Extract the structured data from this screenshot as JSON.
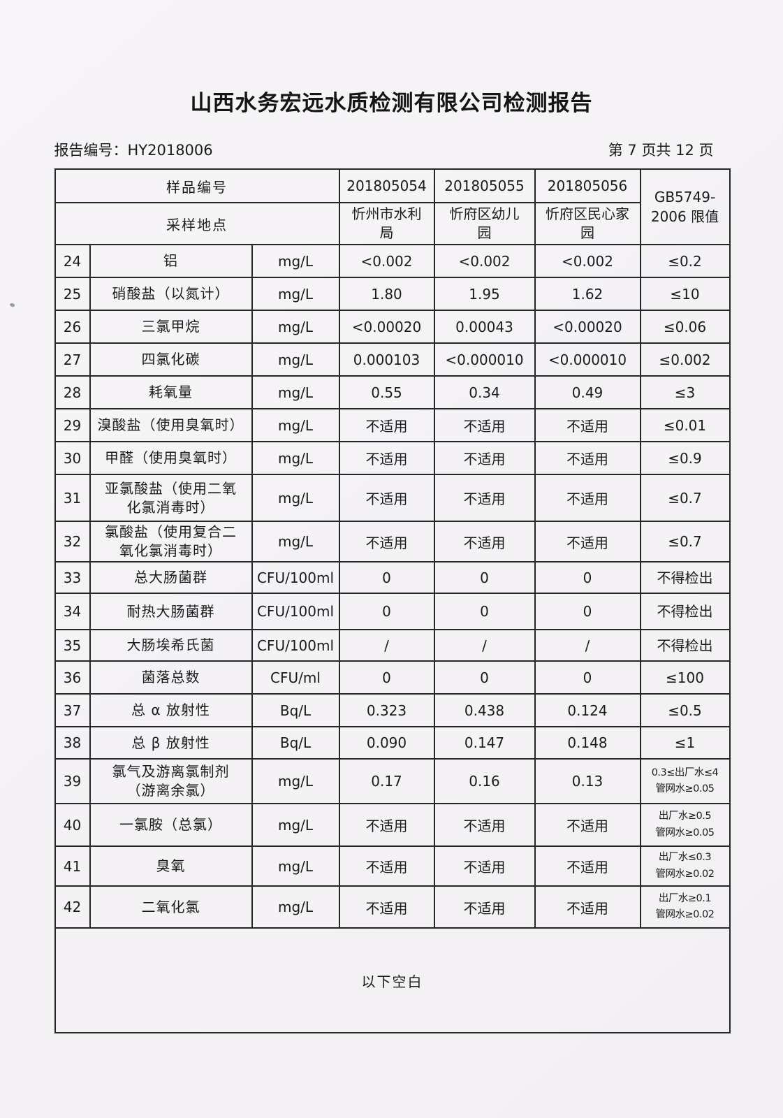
{
  "page": {
    "title": "山西水务宏远水质检测有限公司检测报告",
    "report_no": "报告编号：HY2018006",
    "page_indicator": "第 7 页共 12 页"
  },
  "table": {
    "header": {
      "sample_id_label": "样品编号",
      "location_label": "采样地点",
      "sample_ids": [
        "201805054",
        "201805055",
        "201805056"
      ],
      "locations": [
        "忻州市水利\n局",
        "忻府区幼儿\n园",
        "忻府区民心家\n园"
      ],
      "limit_header_line1": "GB5749-",
      "limit_header_line2": "2006 限值"
    },
    "rows": [
      {
        "no": "24",
        "name": "铝",
        "unit": "mg/L",
        "values": [
          "<0.002",
          "<0.002",
          "<0.002"
        ],
        "limit": "≤0.2"
      },
      {
        "no": "25",
        "name": "硝酸盐（以氮计）",
        "unit": "mg/L",
        "values": [
          "1.80",
          "1.95",
          "1.62"
        ],
        "limit": "≤10"
      },
      {
        "no": "26",
        "name": "三氯甲烷",
        "unit": "mg/L",
        "values": [
          "<0.00020",
          "0.00043",
          "<0.00020"
        ],
        "limit": "≤0.06"
      },
      {
        "no": "27",
        "name": "四氯化碳",
        "unit": "mg/L",
        "values": [
          "0.000103",
          "<0.000010",
          "<0.000010"
        ],
        "limit": "≤0.002"
      },
      {
        "no": "28",
        "name": "耗氧量",
        "unit": "mg/L",
        "values": [
          "0.55",
          "0.34",
          "0.49"
        ],
        "limit": "≤3"
      },
      {
        "no": "29",
        "name": "溴酸盐（使用臭氧时）",
        "unit": "mg/L",
        "values": [
          "不适用",
          "不适用",
          "不适用"
        ],
        "limit": "≤0.01"
      },
      {
        "no": "30",
        "name": "甲醛（使用臭氧时）",
        "unit": "mg/L",
        "values": [
          "不适用",
          "不适用",
          "不适用"
        ],
        "limit": "≤0.9"
      },
      {
        "no": "31",
        "name": "亚氯酸盐（使用二氧\n化氯消毒时）",
        "unit": "mg/L",
        "values": [
          "不适用",
          "不适用",
          "不适用"
        ],
        "limit": "≤0.7"
      },
      {
        "no": "32",
        "name": "氯酸盐（使用复合二\n氧化氯消毒时）",
        "unit": "mg/L",
        "values": [
          "不适用",
          "不适用",
          "不适用"
        ],
        "limit": "≤0.7"
      },
      {
        "no": "33",
        "name": "总大肠菌群",
        "unit": "CFU/100ml",
        "values": [
          "0",
          "0",
          "0"
        ],
        "limit": "不得检出"
      },
      {
        "no": "34",
        "name": "耐热大肠菌群",
        "unit": "CFU/100ml",
        "values": [
          "0",
          "0",
          "0"
        ],
        "limit": "不得检出"
      },
      {
        "no": "35",
        "name": "大肠埃希氏菌",
        "unit": "CFU/100ml",
        "values": [
          "/",
          "/",
          "/"
        ],
        "limit": "不得检出"
      },
      {
        "no": "36",
        "name": "菌落总数",
        "unit": "CFU/ml",
        "values": [
          "0",
          "0",
          "0"
        ],
        "limit": "≤100"
      },
      {
        "no": "37",
        "name": "总 α 放射性",
        "unit": "Bq/L",
        "values": [
          "0.323",
          "0.438",
          "0.124"
        ],
        "limit": "≤0.5"
      },
      {
        "no": "38",
        "name": "总 β 放射性",
        "unit": "Bq/L",
        "values": [
          "0.090",
          "0.147",
          "0.148"
        ],
        "limit": "≤1"
      },
      {
        "no": "39",
        "name": "氯气及游离氯制剂\n（游离余氯）",
        "unit": "mg/L",
        "values": [
          "0.17",
          "0.16",
          "0.13"
        ],
        "limit": "0.3≤出厂水≤4\n管网水≥0.05"
      },
      {
        "no": "40",
        "name": "一氯胺（总氯）",
        "unit": "mg/L",
        "values": [
          "不适用",
          "不适用",
          "不适用"
        ],
        "limit": "出厂水≥0.5\n管网水≥0.05"
      },
      {
        "no": "41",
        "name": "臭氧",
        "unit": "mg/L",
        "values": [
          "不适用",
          "不适用",
          "不适用"
        ],
        "limit": "出厂水≤0.3\n管网水≥0.02"
      },
      {
        "no": "42",
        "name": "二氧化氯",
        "unit": "mg/L",
        "values": [
          "不适用",
          "不适用",
          "不适用"
        ],
        "limit": "出厂水≥0.1\n管网水≥0.02"
      }
    ],
    "footer_note": "以下空白"
  }
}
